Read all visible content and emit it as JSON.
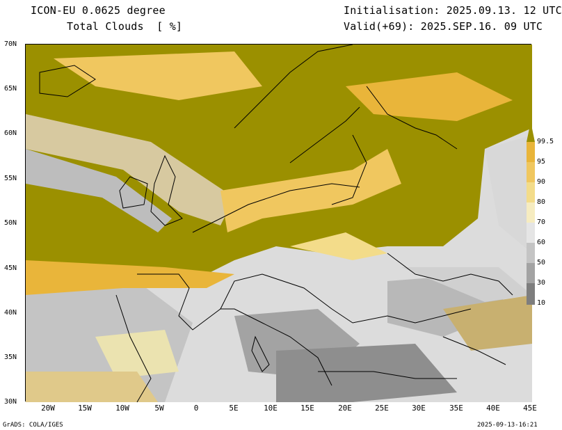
{
  "header": {
    "model": "ICON-EU 0.0625 degree",
    "field": "Total Clouds  [ %]",
    "initialisation": "Initialisation: 2025.09.13. 12 UTC",
    "valid": "Valid(+69): 2025.SEP.16. 09 UTC"
  },
  "map": {
    "lat_labels": [
      "70N",
      "65N",
      "60N",
      "55N",
      "50N",
      "45N",
      "40N",
      "35N",
      "30N"
    ],
    "lon_labels": [
      "20W",
      "15W",
      "10W",
      "5W",
      "0",
      "5E",
      "10E",
      "15E",
      "20E",
      "25E",
      "30E",
      "35E",
      "40E",
      "45E"
    ]
  },
  "colorbar": {
    "labels": [
      "99.5",
      "95",
      "90",
      "80",
      "70",
      "60",
      "50",
      "30",
      "10"
    ],
    "colors": [
      "#9b9000",
      "#e9b53a",
      "#f0c75f",
      "#f3dc8a",
      "#f6ecc0",
      "#e5e5e5",
      "#c4c4c4",
      "#a3a3a3",
      "#7e7e7e",
      "#585858"
    ]
  },
  "footer": {
    "left": "GrADS: COLA/IGES",
    "right": "2025-09-13-16:21"
  }
}
